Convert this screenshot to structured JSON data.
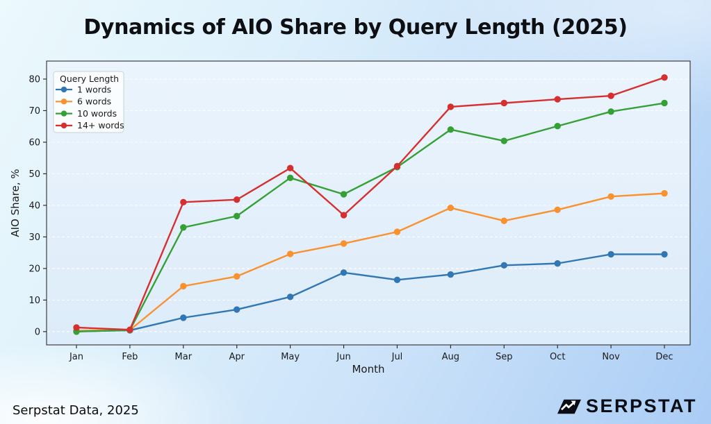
{
  "page": {
    "title": "Dynamics of AIO Share by Query Length (2025)",
    "footer_source": "Serpstat Data, 2025",
    "brand": "SERPSTAT"
  },
  "colors": {
    "background_top": "#ecf9fd",
    "background_bottom": "#aaccf5",
    "plot_background_top": "#ebf4fc",
    "plot_background_bottom": "#ddecfa",
    "gridline": "#fbfdfe",
    "axis": "#2e2e2e",
    "text": "#1a1a1a",
    "legend_face": "rgba(255,255,255,0.78)",
    "legend_edge": "#c6d2d9",
    "logo_black": "#0b0d14"
  },
  "chart_data": {
    "type": "line",
    "title": "Dynamics of AIO Share by Query Length (2025)",
    "xlabel": "Month",
    "ylabel": "AIO Share, %",
    "x_categories": [
      "Jan",
      "Feb",
      "Mar",
      "Apr",
      "May",
      "Jun",
      "Jul",
      "Aug",
      "Sep",
      "Oct",
      "Nov",
      "Dec"
    ],
    "yticks": [
      0,
      10,
      20,
      30,
      40,
      50,
      60,
      70,
      80
    ],
    "ylim": [
      -4.2,
      85.7
    ],
    "grid": true,
    "legend_title": "Query Length",
    "legend_position": "upper left",
    "series": [
      {
        "name": "1 words",
        "color": "#3177b4",
        "values": [
          0.1,
          0.4,
          4.4,
          7.0,
          11.0,
          18.7,
          16.4,
          18.1,
          21.0,
          21.6,
          24.5,
          24.5
        ]
      },
      {
        "name": "6 words",
        "color": "#f9912e",
        "values": [
          0.3,
          0.5,
          14.4,
          17.5,
          24.6,
          27.9,
          31.6,
          39.2,
          35.1,
          38.6,
          42.8,
          43.8
        ]
      },
      {
        "name": "10 words",
        "color": "#35a035",
        "values": [
          0.0,
          0.5,
          33.0,
          36.6,
          48.7,
          43.5,
          52.1,
          64.0,
          60.4,
          65.1,
          69.7,
          72.4
        ]
      },
      {
        "name": "14+ words",
        "color": "#d62f2f",
        "values": [
          1.3,
          0.6,
          41.0,
          41.8,
          51.8,
          36.9,
          52.4,
          71.2,
          72.4,
          73.6,
          74.7,
          80.5
        ]
      }
    ]
  }
}
